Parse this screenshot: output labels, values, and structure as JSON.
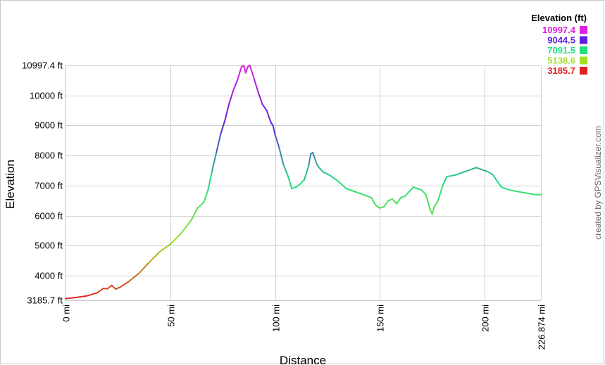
{
  "chart_data": {
    "type": "line",
    "xlabel": "Distance",
    "ylabel": "Elevation",
    "xlim": [
      0,
      226.874
    ],
    "ylim": [
      3185.7,
      10997.4
    ],
    "grid": true,
    "x_ticks": [
      {
        "value": 0,
        "label": "0 mi"
      },
      {
        "value": 50,
        "label": "50 mi"
      },
      {
        "value": 100,
        "label": "100 mi"
      },
      {
        "value": 150,
        "label": "150 mi"
      },
      {
        "value": 200,
        "label": "200 mi"
      },
      {
        "value": 226.874,
        "label": "226.874 mi"
      }
    ],
    "y_ticks": [
      {
        "value": 3185.7,
        "label": "3185.7 ft"
      },
      {
        "value": 4000,
        "label": "4000 ft"
      },
      {
        "value": 5000,
        "label": "5000 ft"
      },
      {
        "value": 6000,
        "label": "6000 ft"
      },
      {
        "value": 7000,
        "label": "7000 ft"
      },
      {
        "value": 8000,
        "label": "8000 ft"
      },
      {
        "value": 9000,
        "label": "9000 ft"
      },
      {
        "value": 10000,
        "label": "10000 ft"
      },
      {
        "value": 10997.4,
        "label": "10997.4 ft"
      }
    ],
    "legend": {
      "title": "Elevation (ft)",
      "placement": "top-right",
      "entries": [
        {
          "label": "10997.4",
          "color": "#e020e0"
        },
        {
          "label": "9044.5",
          "color": "#6020e0"
        },
        {
          "label": "7091.5",
          "color": "#20e080"
        },
        {
          "label": "5138.6",
          "color": "#a0e020"
        },
        {
          "label": "3185.7",
          "color": "#e02020"
        }
      ]
    },
    "color_scale": [
      {
        "value": 3185.7,
        "color": "#e02020"
      },
      {
        "value": 5138.6,
        "color": "#a0e020"
      },
      {
        "value": 7091.5,
        "color": "#20e080"
      },
      {
        "value": 9044.5,
        "color": "#6020e0"
      },
      {
        "value": 10997.4,
        "color": "#e020e0"
      }
    ],
    "series": [
      {
        "x": [
          0,
          5,
          10,
          15,
          18,
          20,
          22,
          24,
          26,
          30,
          35,
          40,
          45,
          50,
          55,
          60,
          63,
          66,
          68,
          70,
          72,
          74,
          76,
          78,
          80,
          82,
          84,
          85,
          86,
          87,
          88,
          90,
          92,
          94,
          96,
          98,
          99,
          100,
          102,
          104,
          106,
          108,
          110,
          112,
          114,
          116,
          117,
          118,
          119,
          120,
          121,
          123,
          126,
          130,
          134,
          138,
          142,
          144,
          146,
          148,
          150,
          152,
          154,
          156,
          158,
          160,
          162,
          164,
          166,
          168,
          170,
          172,
          174,
          175,
          176,
          177,
          178,
          180,
          182,
          186,
          190,
          194,
          196,
          198,
          200,
          202,
          204,
          206,
          208,
          212,
          216,
          220,
          224,
          226.874
        ],
        "y": [
          3240,
          3280,
          3330,
          3430,
          3580,
          3570,
          3680,
          3560,
          3620,
          3800,
          4080,
          4450,
          4800,
          5050,
          5400,
          5850,
          6250,
          6450,
          6850,
          7500,
          8100,
          8700,
          9150,
          9700,
          10150,
          10500,
          10950,
          10997,
          10750,
          10950,
          10997,
          10550,
          10100,
          9700,
          9500,
          9100,
          9000,
          8700,
          8250,
          7700,
          7350,
          6900,
          6950,
          7050,
          7200,
          7650,
          8050,
          8100,
          7900,
          7700,
          7600,
          7450,
          7350,
          7150,
          6900,
          6800,
          6700,
          6650,
          6600,
          6350,
          6250,
          6300,
          6500,
          6550,
          6400,
          6600,
          6650,
          6800,
          6950,
          6900,
          6850,
          6700,
          6200,
          6050,
          6300,
          6400,
          6550,
          7000,
          7300,
          7350,
          7450,
          7550,
          7600,
          7550,
          7500,
          7450,
          7350,
          7150,
          6950,
          6850,
          6800,
          6750,
          6700,
          6700
        ]
      }
    ]
  },
  "credit": "created by GPSVisualizer.com"
}
